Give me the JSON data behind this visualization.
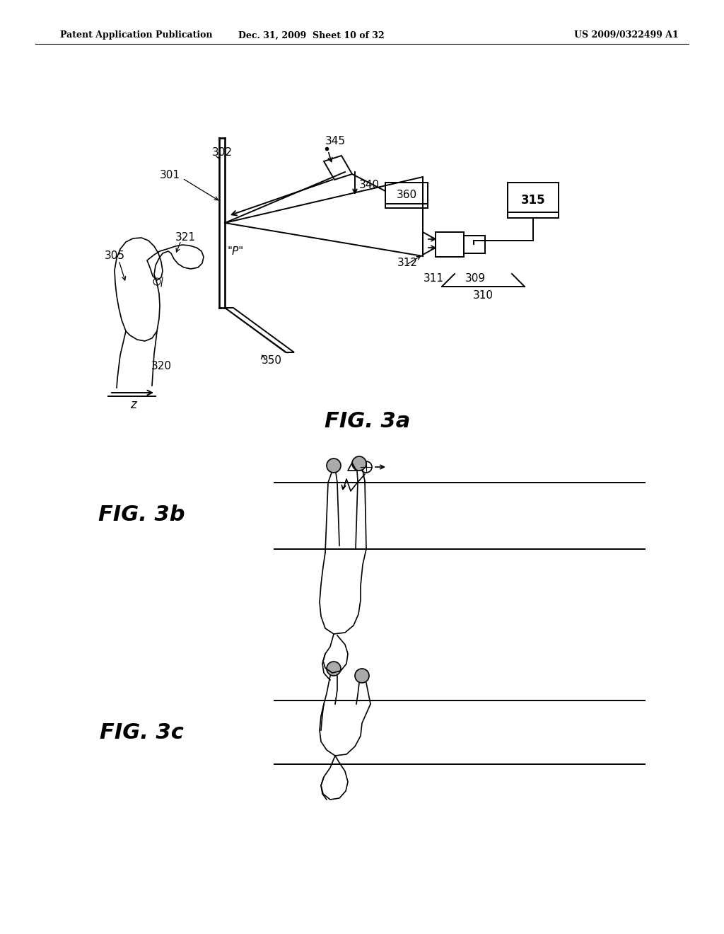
{
  "bg_color": "#ffffff",
  "header_left": "Patent Application Publication",
  "header_center": "Dec. 31, 2009  Sheet 10 of 32",
  "header_right": "US 2009/0322499 A1",
  "fig3a_label": "FIG. 3a",
  "fig3b_label": "FIG. 3b",
  "fig3c_label": "FIG. 3c"
}
